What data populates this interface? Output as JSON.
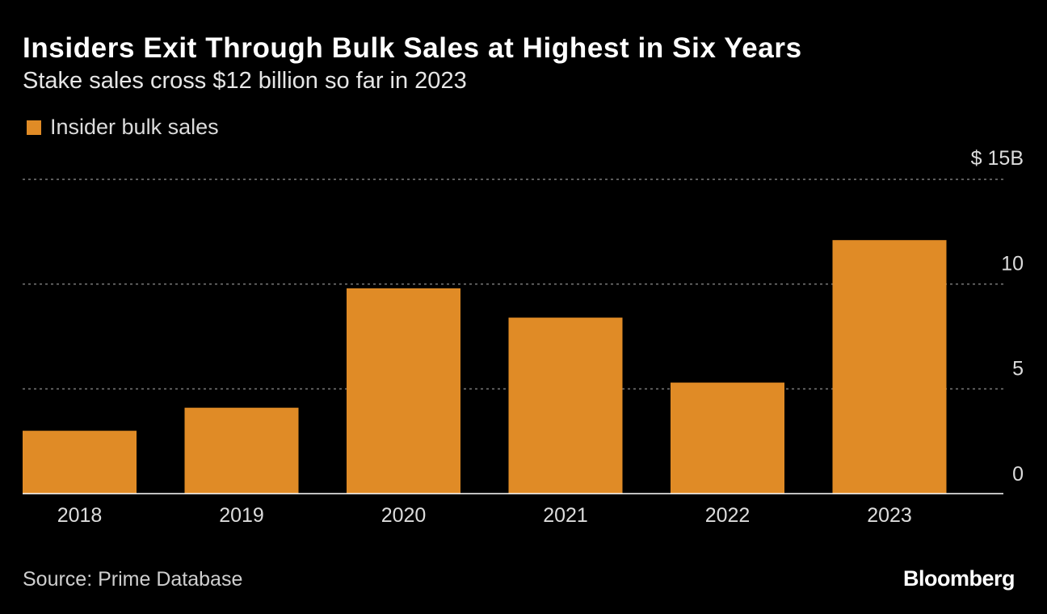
{
  "header": {
    "title": "Insiders Exit Through Bulk Sales at Highest in Six Years",
    "subtitle": "Stake sales cross $12 billion so far in 2023"
  },
  "footer": {
    "source": "Source: Prime Database",
    "brand": "Bloomberg"
  },
  "colors": {
    "background": "#000000",
    "bar": "#e08b26",
    "grid": "#7a7a7a",
    "axis": "#ffffff",
    "text": "#ffffff",
    "muted_text": "#dcdcdc"
  },
  "chart_data": {
    "type": "bar",
    "title": "Insiders Exit Through Bulk Sales at Highest in Six Years",
    "subtitle": "Stake sales cross $12 billion so far in 2023",
    "xlabel": "",
    "ylabel": "",
    "categories": [
      "2018",
      "2019",
      "2020",
      "2021",
      "2022",
      "2023"
    ],
    "series": [
      {
        "name": "Insider bulk sales",
        "values": [
          3.0,
          4.1,
          9.8,
          8.4,
          5.3,
          12.1
        ]
      }
    ],
    "ylim": [
      0,
      15
    ],
    "yticks": [
      0,
      5,
      10,
      15
    ],
    "ytick_labels": [
      "0",
      "5",
      "10",
      "$ 15B"
    ],
    "grid": true,
    "legend_position": "top-left",
    "y_axis_side": "right"
  }
}
